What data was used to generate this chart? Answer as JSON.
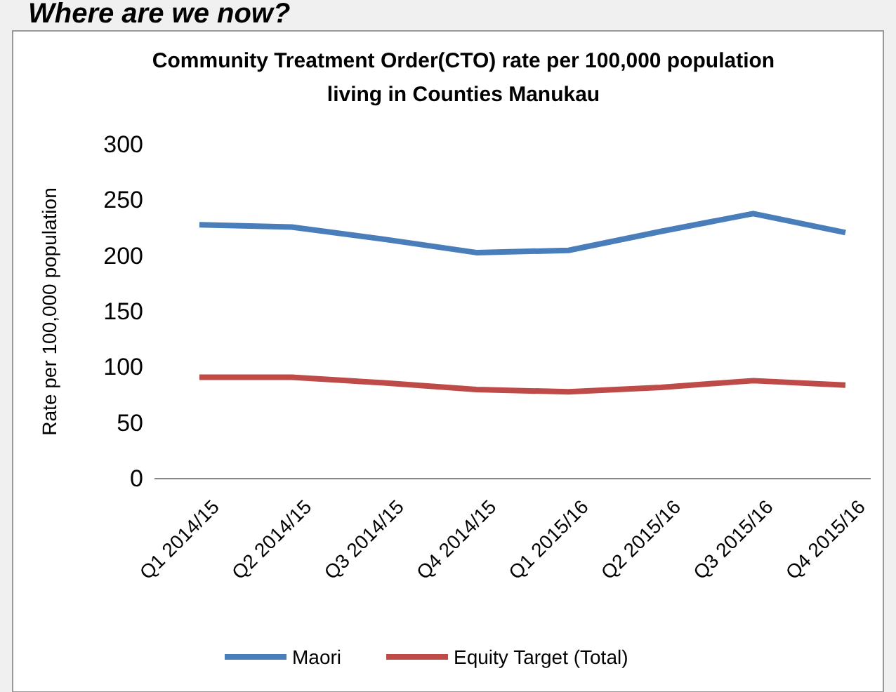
{
  "chart_data": {
    "type": "line",
    "title": "Community Treatment Order(CTO) rate per 100,000 population living in Counties Manukau",
    "ylabel": "Rate per 100,000 population",
    "annotations": [
      "Where are we now?"
    ],
    "categories": [
      "Q1 2014/15",
      "Q2 2014/15",
      "Q3 2014/15",
      "Q4 2014/15",
      "Q1 2015/16",
      "Q2 2015/16",
      "Q3 2015/16",
      "Q4 2015/16"
    ],
    "series": [
      {
        "name": "Maori",
        "color": "#4a7ebb",
        "values": [
          228,
          226,
          215,
          203,
          205,
          222,
          238,
          221
        ]
      },
      {
        "name": "Equity Target (Total)",
        "color": "#be4b48",
        "values": [
          91,
          91,
          86,
          80,
          78,
          82,
          88,
          84
        ]
      }
    ],
    "ylim": [
      0,
      300
    ],
    "yticks": [
      0,
      50,
      100,
      150,
      200,
      250,
      300
    ],
    "grid": false,
    "legend": "bottom",
    "marker": "none",
    "line_style": "solid"
  }
}
